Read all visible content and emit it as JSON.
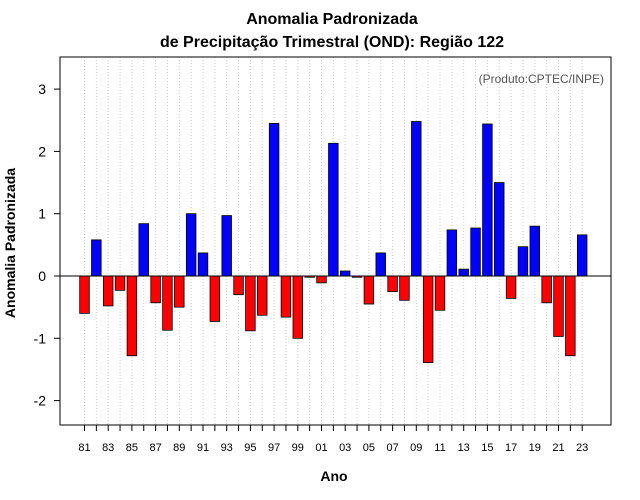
{
  "chart_data": {
    "type": "bar",
    "title": "Anomalia Padronizada",
    "subtitle": "de Precipitação Trimestral (OND): Região 122",
    "xlabel": "Ano",
    "ylabel": "Anomalia Padronizada",
    "credit": "(Produto:CPTEC/INPE)",
    "ylim": [
      -2.4,
      3.5
    ],
    "yticks": [
      -2,
      -1,
      0,
      1,
      2,
      3
    ],
    "ytick_labels": [
      "-2",
      "-1",
      "0",
      "1",
      "2",
      "3"
    ],
    "grid": "vertical dotted",
    "positive_color": "#0000ff",
    "negative_color": "#ff0000",
    "categories": [
      "81",
      "82",
      "83",
      "84",
      "85",
      "86",
      "87",
      "88",
      "89",
      "90",
      "91",
      "92",
      "93",
      "94",
      "95",
      "96",
      "97",
      "98",
      "99",
      "00",
      "01",
      "02",
      "03",
      "04",
      "05",
      "06",
      "07",
      "08",
      "09",
      "10",
      "11",
      "12",
      "13",
      "14",
      "15",
      "16",
      "17",
      "18",
      "19",
      "20",
      "21",
      "22",
      "23"
    ],
    "xtick_labels": [
      "81",
      "83",
      "85",
      "87",
      "89",
      "91",
      "93",
      "95",
      "97",
      "99",
      "01",
      "03",
      "05",
      "07",
      "09",
      "11",
      "13",
      "15",
      "17",
      "19",
      "21",
      "23"
    ],
    "values": [
      -0.6,
      0.58,
      -0.48,
      -0.23,
      -1.28,
      0.84,
      -0.43,
      -0.87,
      -0.5,
      1.0,
      0.37,
      -0.73,
      0.97,
      -0.3,
      -0.88,
      -0.63,
      2.45,
      -0.66,
      -1.0,
      -0.02,
      -0.11,
      2.13,
      0.08,
      -0.02,
      -0.45,
      0.37,
      -0.25,
      -0.39,
      2.48,
      -1.39,
      -0.55,
      0.74,
      0.11,
      0.77,
      2.44,
      1.5,
      -0.36,
      0.47,
      0.8,
      -0.43,
      -0.97,
      -1.28,
      0.66
    ]
  }
}
